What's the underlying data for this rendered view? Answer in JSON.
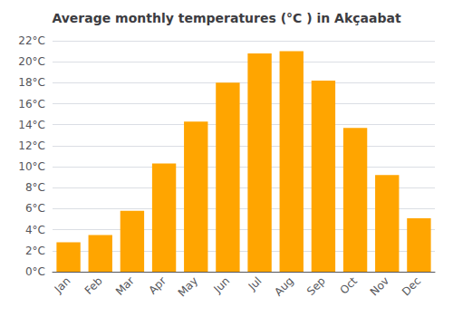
{
  "chart_data": {
    "type": "bar",
    "title": "Average monthly temperatures (°C ) in Akçaabat",
    "categories": [
      "Jan",
      "Feb",
      "Mar",
      "Apr",
      "May",
      "Jun",
      "Jul",
      "Aug",
      "Sep",
      "Oct",
      "Nov",
      "Dec"
    ],
    "values": [
      2.8,
      3.5,
      5.8,
      10.3,
      14.3,
      18.0,
      20.8,
      21.0,
      18.2,
      13.7,
      9.2,
      5.1
    ],
    "color": "#FFA500",
    "ylim": [
      0,
      22
    ],
    "yticks": [
      {
        "value": 0,
        "label": "0°C"
      },
      {
        "value": 2,
        "label": "2°C"
      },
      {
        "value": 4,
        "label": "4°C"
      },
      {
        "value": 6,
        "label": "6°C"
      },
      {
        "value": 8,
        "label": "8°C"
      },
      {
        "value": 10,
        "label": "10°C"
      },
      {
        "value": 12,
        "label": "12°C"
      },
      {
        "value": 14,
        "label": "14°C"
      },
      {
        "value": 16,
        "label": "16°C"
      },
      {
        "value": 18,
        "label": "18°C"
      },
      {
        "value": 20,
        "label": "20°C"
      },
      {
        "value": 22,
        "label": "22°C"
      }
    ],
    "grid": true
  }
}
